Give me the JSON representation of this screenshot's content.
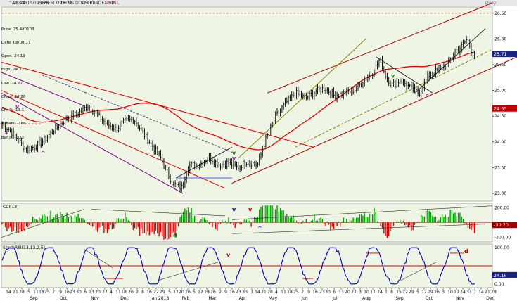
{
  "header": {
    "title": "^AICK-UUP-D - INVESCO DB US DOLLAR INDEX BULL",
    "fields": [
      "25.74",
      "25.75",
      "25.70",
      "25.71",
      "-0.15"
    ],
    "right": "Daily"
  },
  "info_box": [
    "Price  25.480103",
    "Date  08/08/17",
    "Open  24.19",
    "High  24.33",
    "Low  24.17",
    "Close  24.26",
    "Chr %  13.1",
    "# Bars  -386",
    "Bar Ix  -323"
  ],
  "chart_data": [
    {
      "type": "candlestick",
      "panel": "price",
      "title": "INVESCO DB US DOLLAR INDEX BULL",
      "yticks": [
        "26.50",
        "26.00",
        "25.50",
        "25.00",
        "24.50",
        "24.00",
        "23.50",
        "23.00"
      ],
      "ylim": [
        22.85,
        26.62
      ],
      "last_value": "25.71",
      "ma_value": "24.65",
      "anchors": [
        [
          0,
          24.35
        ],
        [
          12,
          24.25
        ],
        [
          23,
          24.1
        ],
        [
          36,
          23.85
        ],
        [
          48,
          23.9
        ],
        [
          60,
          24.0
        ],
        [
          78,
          24.25
        ],
        [
          94,
          24.45
        ],
        [
          110,
          24.55
        ],
        [
          125,
          24.7
        ],
        [
          140,
          24.5
        ],
        [
          152,
          24.35
        ],
        [
          165,
          24.25
        ],
        [
          178,
          24.4
        ],
        [
          190,
          24.45
        ],
        [
          202,
          24.2
        ],
        [
          215,
          23.95
        ],
        [
          228,
          23.7
        ],
        [
          245,
          23.2
        ],
        [
          258,
          23.1
        ],
        [
          268,
          23.55
        ],
        [
          282,
          23.55
        ],
        [
          298,
          23.7
        ],
        [
          312,
          23.55
        ],
        [
          325,
          23.6
        ],
        [
          338,
          23.5
        ],
        [
          350,
          23.62
        ],
        [
          366,
          23.55
        ],
        [
          378,
          24.05
        ],
        [
          392,
          24.5
        ],
        [
          406,
          24.75
        ],
        [
          420,
          24.95
        ],
        [
          435,
          24.85
        ],
        [
          450,
          25.0
        ],
        [
          462,
          25.05
        ],
        [
          475,
          24.9
        ],
        [
          490,
          24.95
        ],
        [
          503,
          25.0
        ],
        [
          518,
          25.2
        ],
        [
          530,
          25.35
        ],
        [
          540,
          25.6
        ],
        [
          548,
          25.3
        ],
        [
          557,
          25.1
        ],
        [
          570,
          25.2
        ],
        [
          583,
          25.05
        ],
        [
          596,
          24.95
        ],
        [
          610,
          25.3
        ],
        [
          624,
          25.4
        ],
        [
          636,
          25.5
        ],
        [
          646,
          25.75
        ],
        [
          656,
          25.85
        ],
        [
          664,
          26.0
        ],
        [
          672,
          25.72
        ]
      ],
      "markers": [
        {
          "x": 22,
          "y": 24.65,
          "text": "v",
          "color": "#c000c0"
        },
        {
          "x": 5,
          "y": 24.1,
          "text": "^",
          "color": "#c000c0"
        },
        {
          "x": 58,
          "y": 23.75,
          "text": "^",
          "color": "#c000c0"
        },
        {
          "x": 330,
          "y": 23.75,
          "text": "v",
          "color": "#008000"
        },
        {
          "x": 330,
          "y": 23.65,
          "text": "v",
          "color": "#c000c0"
        },
        {
          "x": 556,
          "y": 25.25,
          "text": "v",
          "color": "#008000"
        },
        {
          "x": 604,
          "y": 24.85,
          "text": "^",
          "color": "#c000c0"
        }
      ]
    },
    {
      "type": "histogram",
      "panel": "cci",
      "title": "CCI(13)",
      "yticks": [
        "200.00",
        "-200.00"
      ],
      "ylim": [
        -260,
        260
      ],
      "last_value": "-30.70",
      "markers": [
        {
          "x": 246,
          "y": -200,
          "text": "d",
          "color": "#008000"
        },
        {
          "x": 330,
          "y": 150,
          "text": "v",
          "color": "#0000a0"
        },
        {
          "x": 353,
          "y": 150,
          "text": "v",
          "color": "#c00000"
        },
        {
          "x": 366,
          "y": -100,
          "text": "^",
          "color": "#0000ff"
        }
      ]
    },
    {
      "type": "line",
      "panel": "stochrsi",
      "title": "StochRSI(13,13,2,5)",
      "yticks": [
        "100.00",
        "0.00"
      ],
      "ylim": [
        -10,
        110
      ],
      "last_value": "24.15",
      "markers": [
        {
          "x": 322,
          "y": 75,
          "text": "v",
          "color": "#c00000"
        },
        {
          "x": 660,
          "y": 85,
          "text": "d",
          "color": "#c00000"
        }
      ]
    }
  ],
  "x_axis": {
    "day_labels": [
      {
        "x": 12,
        "t": "14"
      },
      {
        "x": 22,
        "t": "21"
      },
      {
        "x": 31,
        "t": "28"
      },
      {
        "x": 41,
        "t": "5"
      },
      {
        "x": 51,
        "t": "11"
      },
      {
        "x": 59,
        "t": "18"
      },
      {
        "x": 67,
        "t": "25"
      },
      {
        "x": 76,
        "t": "2"
      },
      {
        "x": 86,
        "t": "9"
      },
      {
        "x": 95,
        "t": "16"
      },
      {
        "x": 103,
        "t": "23"
      },
      {
        "x": 112,
        "t": "30"
      },
      {
        "x": 121,
        "t": "6"
      },
      {
        "x": 130,
        "t": "13"
      },
      {
        "x": 139,
        "t": "20"
      },
      {
        "x": 149,
        "t": "27"
      },
      {
        "x": 158,
        "t": "4"
      },
      {
        "x": 168,
        "t": "11"
      },
      {
        "x": 176,
        "t": "18"
      },
      {
        "x": 186,
        "t": "26"
      },
      {
        "x": 195,
        "t": "2"
      },
      {
        "x": 203,
        "t": "8"
      },
      {
        "x": 212,
        "t": "16"
      },
      {
        "x": 222,
        "t": "22"
      },
      {
        "x": 231,
        "t": "29"
      },
      {
        "x": 241,
        "t": "5"
      },
      {
        "x": 250,
        "t": "12"
      },
      {
        "x": 258,
        "t": "20"
      },
      {
        "x": 267,
        "t": "26"
      },
      {
        "x": 276,
        "t": "5"
      },
      {
        "x": 285,
        "t": "12"
      },
      {
        "x": 294,
        "t": "19"
      },
      {
        "x": 303,
        "t": "26"
      },
      {
        "x": 313,
        "t": "2"
      },
      {
        "x": 321,
        "t": "9"
      },
      {
        "x": 330,
        "t": "16"
      },
      {
        "x": 339,
        "t": "23"
      },
      {
        "x": 348,
        "t": "30"
      },
      {
        "x": 358,
        "t": "7"
      },
      {
        "x": 366,
        "t": "14"
      },
      {
        "x": 375,
        "t": "21"
      },
      {
        "x": 384,
        "t": "28"
      },
      {
        "x": 393,
        "t": "4"
      },
      {
        "x": 403,
        "t": "11"
      },
      {
        "x": 412,
        "t": "18"
      },
      {
        "x": 421,
        "t": "25"
      },
      {
        "x": 430,
        "t": "2"
      },
      {
        "x": 439,
        "t": "9"
      },
      {
        "x": 448,
        "t": "16"
      },
      {
        "x": 458,
        "t": "23"
      },
      {
        "x": 466,
        "t": "30"
      },
      {
        "x": 475,
        "t": "6"
      },
      {
        "x": 485,
        "t": "13"
      },
      {
        "x": 494,
        "t": "20"
      },
      {
        "x": 503,
        "t": "27"
      },
      {
        "x": 512,
        "t": "3"
      },
      {
        "x": 521,
        "t": "10"
      },
      {
        "x": 530,
        "t": "17"
      },
      {
        "x": 540,
        "t": "24"
      },
      {
        "x": 549,
        "t": "1"
      },
      {
        "x": 557,
        "t": "8"
      },
      {
        "x": 567,
        "t": "15"
      },
      {
        "x": 576,
        "t": "22"
      },
      {
        "x": 585,
        "t": "29"
      },
      {
        "x": 594,
        "t": "5"
      },
      {
        "x": 603,
        "t": "12"
      },
      {
        "x": 612,
        "t": "19"
      },
      {
        "x": 621,
        "t": "26"
      },
      {
        "x": 630,
        "t": "3"
      },
      {
        "x": 640,
        "t": "10"
      },
      {
        "x": 649,
        "t": "17"
      },
      {
        "x": 658,
        "t": "24"
      },
      {
        "x": 667,
        "t": "31"
      },
      {
        "x": 675,
        "t": "7"
      },
      {
        "x": 684,
        "t": "14"
      },
      {
        "x": 693,
        "t": "21"
      },
      {
        "x": 702,
        "t": "28"
      }
    ],
    "month_labels": [
      {
        "x": 48,
        "t": "Sep"
      },
      {
        "x": 90,
        "t": "Oct"
      },
      {
        "x": 135,
        "t": "Nov"
      },
      {
        "x": 177,
        "t": "Dec"
      },
      {
        "x": 227,
        "t": "Jan 2018"
      },
      {
        "x": 264,
        "t": "Feb"
      },
      {
        "x": 302,
        "t": "Mar"
      },
      {
        "x": 345,
        "t": "Apr"
      },
      {
        "x": 388,
        "t": "May"
      },
      {
        "x": 433,
        "t": "Jun"
      },
      {
        "x": 476,
        "t": "Jul"
      },
      {
        "x": 521,
        "t": "Aug"
      },
      {
        "x": 568,
        "t": "Sep"
      },
      {
        "x": 610,
        "t": "Oct"
      },
      {
        "x": 654,
        "t": "Nov"
      },
      {
        "x": 697,
        "t": "Dec"
      }
    ]
  },
  "colors": {
    "background": "#eef5e4",
    "bars": "#000000",
    "ma": "#e00000",
    "channel": "#a00000",
    "bull_channel": "#808000",
    "purple_channel": "#800080",
    "cci_up": "#00a000",
    "cci_down": "#e00000",
    "stoch": "#0000b0",
    "last_badge": "#1a237e",
    "ma_badge": "#c00000",
    "cci_badge": "#a00000"
  }
}
